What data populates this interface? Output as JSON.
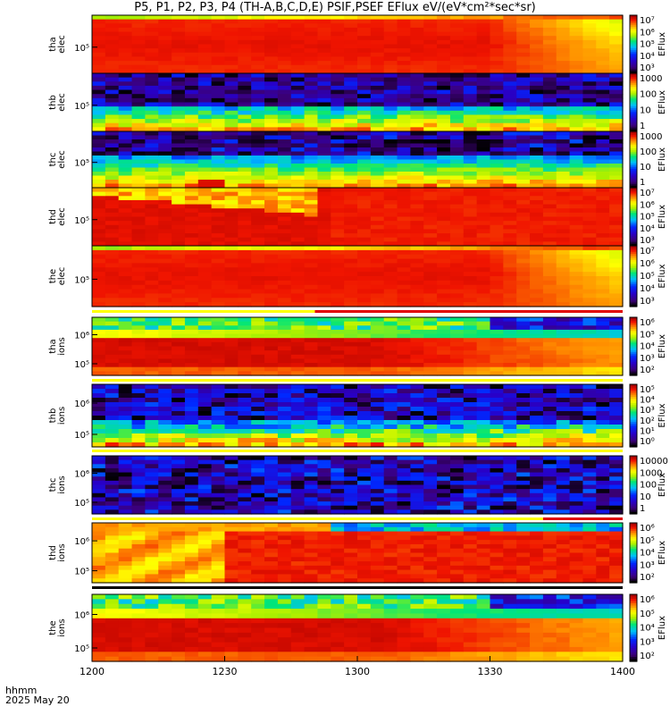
{
  "chart_data": {
    "type": "heatmap",
    "title": "P5, P1, P2, P3, P4 (TH-A,B,C,D,E) PSIF,PSEF EFlux eV/(eV*cm²*sec*sr)",
    "x_ticks": [
      "1200",
      "1230",
      "1300",
      "1330",
      "1400"
    ],
    "x_range": [
      "1200",
      "1400"
    ],
    "footer_label": "hhmm",
    "footer_date": "2025 May 20",
    "colorbar_axis_label": "EFlux",
    "panels": [
      {
        "id": "tha-elec",
        "ylabel": [
          "tha",
          "elec"
        ],
        "y_ticks": [
          "10⁵"
        ],
        "cb_ticks": [
          "10⁷",
          "10⁶",
          "10⁵",
          "10⁴",
          "10³"
        ],
        "pattern": "elec_high"
      },
      {
        "id": "thb-elec",
        "ylabel": [
          "thb",
          "elec"
        ],
        "y_ticks": [
          "10⁵"
        ],
        "cb_ticks": [
          "1000",
          "100",
          "10",
          "1"
        ],
        "pattern": "elec_low"
      },
      {
        "id": "thc-elec",
        "ylabel": [
          "thc",
          "elec"
        ],
        "y_ticks": [
          "10⁵"
        ],
        "cb_ticks": [
          "1000",
          "100",
          "10",
          "1"
        ],
        "pattern": "elec_low2"
      },
      {
        "id": "thd-elec",
        "ylabel": [
          "thd",
          "elec"
        ],
        "y_ticks": [
          "10⁵"
        ],
        "cb_ticks": [
          "10⁷",
          "10⁶",
          "10⁵",
          "10⁴",
          "10³"
        ],
        "pattern": "elec_d"
      },
      {
        "id": "the-elec",
        "ylabel": [
          "the",
          "elec"
        ],
        "y_ticks": [
          "10⁵"
        ],
        "cb_ticks": [
          "10⁷",
          "10⁶",
          "10⁵",
          "10⁴",
          "10³"
        ],
        "pattern": "elec_high",
        "bar": "yellow_red",
        "bar_switch": 0.42
      },
      {
        "id": "tha-ions",
        "ylabel": [
          "tha",
          "ions"
        ],
        "y_ticks": [
          "10⁶",
          "10⁵"
        ],
        "cb_ticks": [
          "10⁶",
          "10⁵",
          "10⁴",
          "10³",
          "10²"
        ],
        "pattern": "ions_a",
        "bar": "yellow"
      },
      {
        "id": "thb-ions",
        "ylabel": [
          "thb",
          "ions"
        ],
        "y_ticks": [
          "10⁶",
          "10⁵"
        ],
        "cb_ticks": [
          "10⁵",
          "10⁴",
          "10³",
          "10²",
          "10¹",
          "10⁰"
        ],
        "pattern": "ions_b",
        "bar": "yellow"
      },
      {
        "id": "thc-ions",
        "ylabel": [
          "thc",
          "ions"
        ],
        "y_ticks": [
          "10⁶",
          "10⁵"
        ],
        "cb_ticks": [
          "10000",
          "1000",
          "100",
          "10",
          "1"
        ],
        "pattern": "ions_c",
        "bar": "yellow_red",
        "bar_switch": 0.85
      },
      {
        "id": "thd-ions",
        "ylabel": [
          "thd",
          "ions"
        ],
        "y_ticks": [
          "10⁶",
          "10⁵"
        ],
        "cb_ticks": [
          "10⁶",
          "10⁵",
          "10⁴",
          "10³",
          "10²"
        ],
        "pattern": "ions_d",
        "bar": "black"
      },
      {
        "id": "the-ions",
        "ylabel": [
          "the",
          "ions"
        ],
        "y_ticks": [
          "10⁶",
          "10⁵"
        ],
        "cb_ticks": [
          "10⁶",
          "10⁵",
          "10⁴",
          "10³",
          "10²"
        ],
        "pattern": "ions_a"
      }
    ]
  }
}
